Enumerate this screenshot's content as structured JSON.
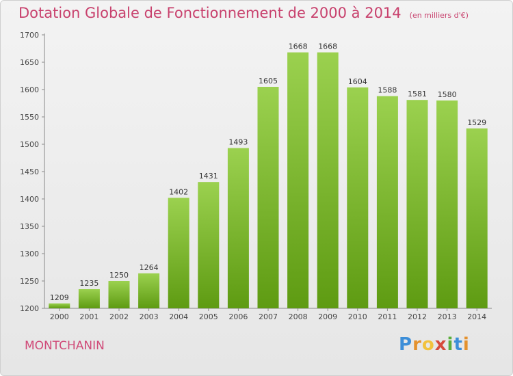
{
  "header": {
    "title": "Dotation Globale de Fonctionnement de 2000 à 2014",
    "subtitle": "(en milliers d'€)"
  },
  "footer": {
    "city": "MONTCHANIN",
    "brand": "Proxiti"
  },
  "colors": {
    "title": "#c8416d",
    "bar_top": "#9bd14f",
    "bar_bottom": "#5e9b12",
    "brand_blue": "#3c8ed8",
    "brand_orange": "#e4912d",
    "brand_red": "#d64b3c"
  },
  "chart_data": {
    "type": "bar",
    "title": "Dotation Globale de Fonctionnement de 2000 à 2014",
    "subtitle": "(en milliers d'€)",
    "xlabel": "",
    "ylabel": "",
    "categories": [
      "2000",
      "2001",
      "2002",
      "2003",
      "2004",
      "2005",
      "2006",
      "2007",
      "2008",
      "2009",
      "2010",
      "2011",
      "2012",
      "2013",
      "2014"
    ],
    "values": [
      1209,
      1235,
      1250,
      1264,
      1402,
      1431,
      1493,
      1605,
      1668,
      1668,
      1604,
      1588,
      1581,
      1580,
      1529
    ],
    "ylim": [
      1200,
      1700
    ],
    "yticks": [
      1200,
      1250,
      1300,
      1350,
      1400,
      1450,
      1500,
      1550,
      1600,
      1650,
      1700
    ],
    "grid": false,
    "data_labels": true
  }
}
